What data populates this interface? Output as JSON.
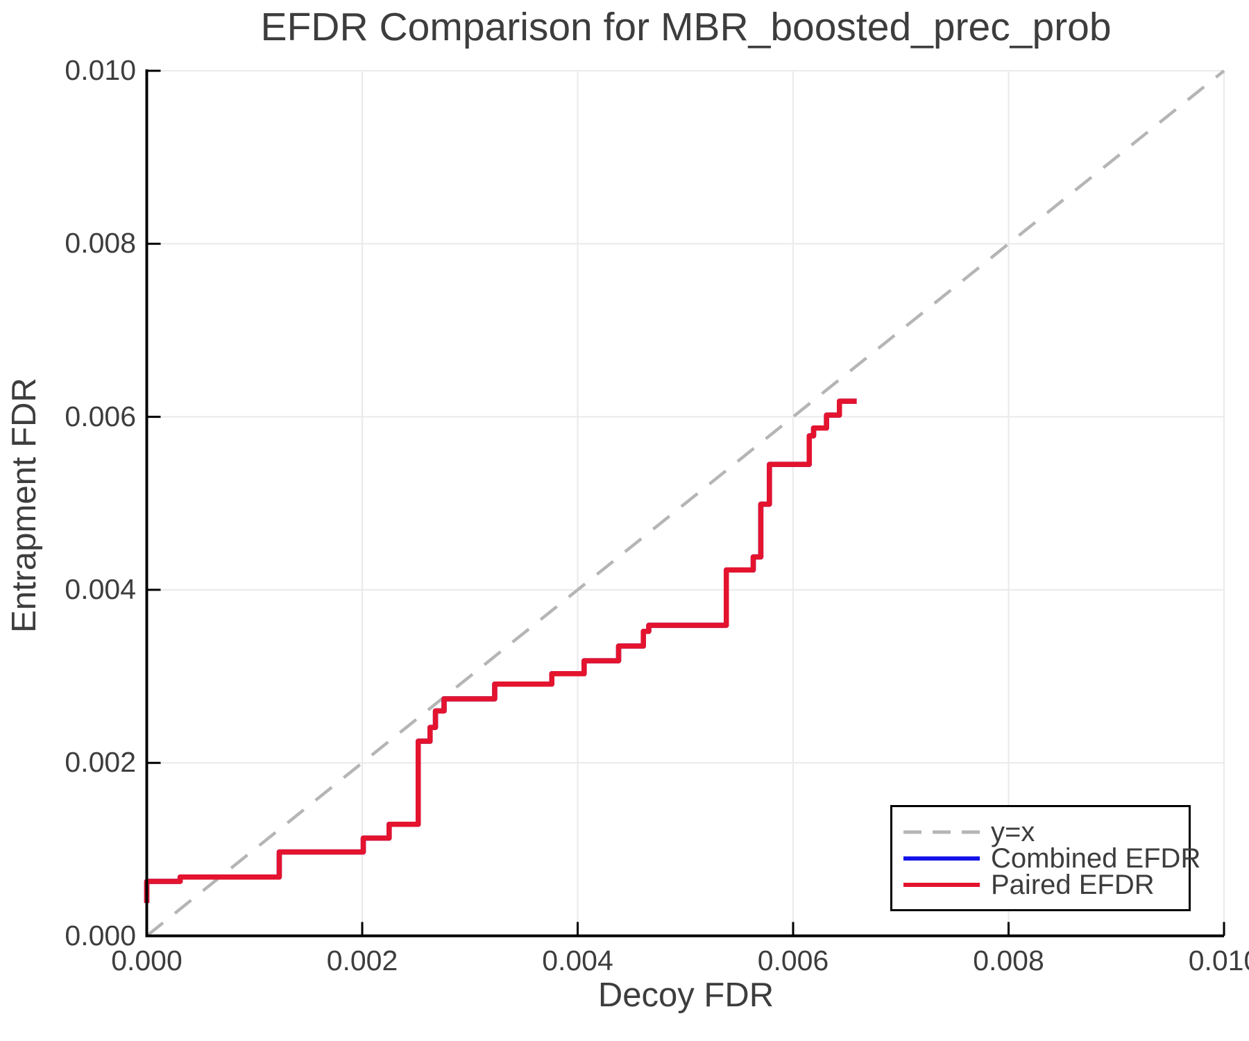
{
  "title": "EFDR Comparison for MBR_boosted_prec_prob",
  "colors": {
    "paired_red": "#e4132e",
    "combined_blue": "#1414e8",
    "identity_gray": "#b5b5b5",
    "grid": "#eaeaea",
    "axis_black": "#000000",
    "text": "#3d3d3d",
    "background": "#ffffff"
  },
  "legend": {
    "position": "lower right",
    "items": [
      {
        "label": "y=x",
        "style": "dashed",
        "color": "#b5b5b5"
      },
      {
        "label": "Combined EFDR",
        "style": "solid",
        "color": "#1414e8"
      },
      {
        "label": "Paired EFDR",
        "style": "solid",
        "color": "#e4132e"
      }
    ]
  },
  "chart_data": {
    "type": "line",
    "title": "EFDR Comparison for MBR_boosted_prec_prob",
    "xlabel": "Decoy FDR",
    "ylabel": "Entrapment FDR",
    "xlim": [
      0.0,
      0.01
    ],
    "ylim": [
      0.0,
      0.01
    ],
    "x_ticks": {
      "values": [
        0.0,
        0.002,
        0.004,
        0.006,
        0.008,
        0.01
      ],
      "labels": [
        "0.000",
        "0.002",
        "0.004",
        "0.006",
        "0.008",
        "0.010"
      ]
    },
    "y_ticks": {
      "values": [
        0.0,
        0.002,
        0.004,
        0.006,
        0.008,
        0.01
      ],
      "labels": [
        "0.000",
        "0.002",
        "0.004",
        "0.006",
        "0.008",
        "0.010"
      ]
    },
    "grid": true,
    "series": [
      {
        "name": "y=x",
        "style": "dashed",
        "step": false,
        "color": "#b5b5b5",
        "points": [
          [
            0.0,
            0.0
          ],
          [
            0.01,
            0.01
          ]
        ]
      },
      {
        "name": "Combined EFDR",
        "style": "solid",
        "step": true,
        "color": "#1414e8",
        "points": [
          [
            0.0,
            0.00038
          ],
          [
            0.0,
            0.00063
          ],
          [
            0.00031,
            0.00068
          ],
          [
            0.00123,
            0.00097
          ],
          [
            0.00201,
            0.00113
          ],
          [
            0.00225,
            0.00129
          ],
          [
            0.00252,
            0.00225
          ],
          [
            0.00263,
            0.00241
          ],
          [
            0.00268,
            0.0026
          ],
          [
            0.00276,
            0.00274
          ],
          [
            0.00323,
            0.00291
          ],
          [
            0.00376,
            0.00303
          ],
          [
            0.00406,
            0.00318
          ],
          [
            0.00438,
            0.00335
          ],
          [
            0.00461,
            0.00352
          ],
          [
            0.00466,
            0.00359
          ],
          [
            0.00538,
            0.00423
          ],
          [
            0.00563,
            0.00438
          ],
          [
            0.0057,
            0.00499
          ],
          [
            0.00578,
            0.00545
          ],
          [
            0.00615,
            0.00578
          ],
          [
            0.00619,
            0.00587
          ],
          [
            0.00631,
            0.00602
          ],
          [
            0.00643,
            0.00618
          ],
          [
            0.00659,
            0.00618
          ]
        ]
      },
      {
        "name": "Paired EFDR",
        "style": "solid",
        "step": true,
        "color": "#e4132e",
        "points": [
          [
            0.0,
            0.00038
          ],
          [
            0.0,
            0.00063
          ],
          [
            0.00031,
            0.00068
          ],
          [
            0.00123,
            0.00097
          ],
          [
            0.00201,
            0.00113
          ],
          [
            0.00225,
            0.00129
          ],
          [
            0.00252,
            0.00225
          ],
          [
            0.00263,
            0.00241
          ],
          [
            0.00268,
            0.0026
          ],
          [
            0.00276,
            0.00274
          ],
          [
            0.00323,
            0.00291
          ],
          [
            0.00376,
            0.00303
          ],
          [
            0.00406,
            0.00318
          ],
          [
            0.00438,
            0.00335
          ],
          [
            0.00461,
            0.00352
          ],
          [
            0.00466,
            0.00359
          ],
          [
            0.00538,
            0.00423
          ],
          [
            0.00563,
            0.00438
          ],
          [
            0.0057,
            0.00499
          ],
          [
            0.00578,
            0.00545
          ],
          [
            0.00615,
            0.00578
          ],
          [
            0.00619,
            0.00587
          ],
          [
            0.00631,
            0.00602
          ],
          [
            0.00643,
            0.00618
          ],
          [
            0.00659,
            0.00618
          ]
        ]
      }
    ]
  }
}
